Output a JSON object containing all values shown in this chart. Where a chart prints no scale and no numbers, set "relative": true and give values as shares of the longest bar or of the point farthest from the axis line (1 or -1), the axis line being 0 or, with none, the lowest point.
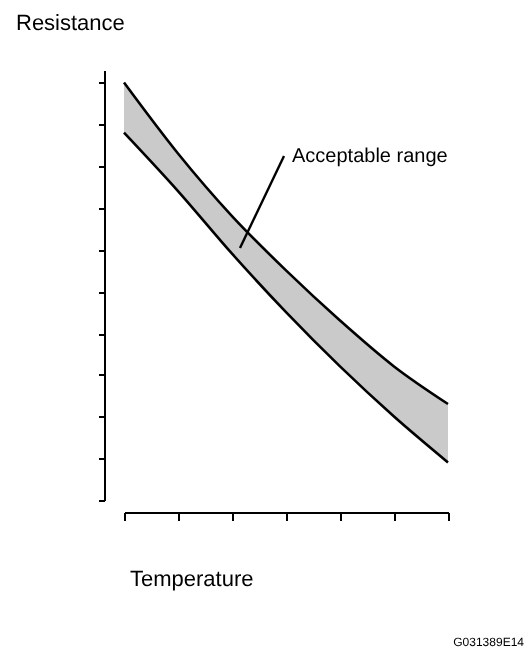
{
  "chart_data": {
    "type": "line",
    "relative": true,
    "ylabel": "Resistance",
    "xlabel": "Temperature",
    "categories": [
      null,
      null,
      null,
      null,
      null,
      null,
      null
    ],
    "series": [
      {
        "color": "#000000",
        "values": [
          1,
          0.83,
          0.68,
          0.55,
          0.43,
          0.32,
          0.23
        ],
        "lower": [
          0.88,
          0.74,
          0.59,
          0.45,
          0.32,
          0.2,
          0.09
        ],
        "upper": [
          1,
          0.83,
          0.68,
          0.55,
          0.43,
          0.32,
          0.23
        ]
      },
      {
        "color": "#000000",
        "values": [
          0.88,
          0.74,
          0.59,
          0.45,
          0.32,
          0.2,
          0.09
        ]
      }
    ],
    "annotations": [
      "Acceptable range",
      "G031389E14"
    ],
    "grid": false
  }
}
